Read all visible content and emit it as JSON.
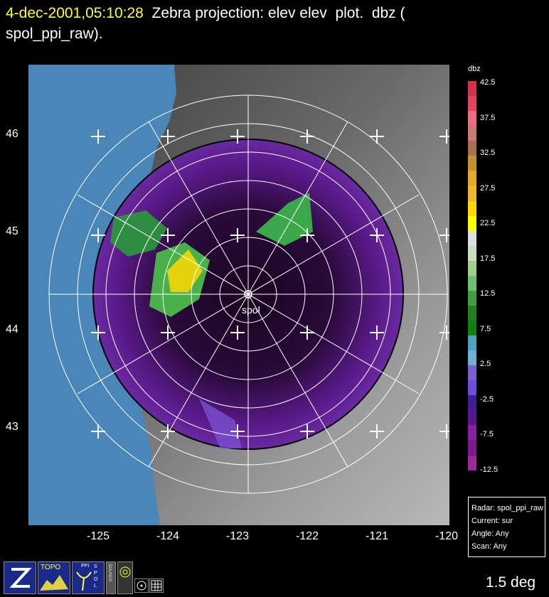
{
  "header": {
    "timestamp": "4-dec-2001,05:10:28",
    "title_rest": "  Zebra projection: elev elev  plot.  dbz (",
    "title_line2": "spol_ppi_raw)."
  },
  "map": {
    "radar_label": "spol",
    "lat_labels": [
      "46",
      "45",
      "44",
      "43"
    ],
    "lon_labels": [
      "-125",
      "-124",
      "-123",
      "-122",
      "-121",
      "-120"
    ],
    "colors": {
      "ocean": "#4a87b8",
      "terrain_dark": "#3f3f3f",
      "terrain_light": "#bdbdbd",
      "rings": "#ffffff"
    }
  },
  "colorbar": {
    "field": "dbz",
    "labels": [
      "42.5",
      "37.5",
      "32.5",
      "27.5",
      "22.5",
      "17.5",
      "12.5",
      "7.5",
      "2.5",
      "-2.5",
      "-7.5",
      "-12.5"
    ],
    "colors": [
      "#d7304a",
      "#e64560",
      "#f06a80",
      "#c87a78",
      "#a87050",
      "#c8902c",
      "#e8a62a",
      "#f0b82a",
      "#ffd800",
      "#ffff00",
      "#e0e0e0",
      "#c8e0c0",
      "#a0d090",
      "#70c070",
      "#40a040",
      "#208020",
      "#108010",
      "#50a0c0",
      "#70b0d8",
      "#7a60d0",
      "#6a50d8",
      "#40209a",
      "#5a1890",
      "#8a1ea0",
      "#7a1890",
      "#9a2a9a"
    ]
  },
  "info_box": {
    "radar": "Radar: spol_ppi_raw",
    "current": "Current: sur",
    "angle": "Angle: Any",
    "scan": "Scan: Any"
  },
  "footer": {
    "elevation": "1.5 deg"
  },
  "toolbar": {
    "zebra_icon": "zebra-logo-icon",
    "topo_label": "TOPO",
    "ppi_label": "PPI",
    "spol_label": "SPOL",
    "sounds_label": "SOUNDS"
  }
}
